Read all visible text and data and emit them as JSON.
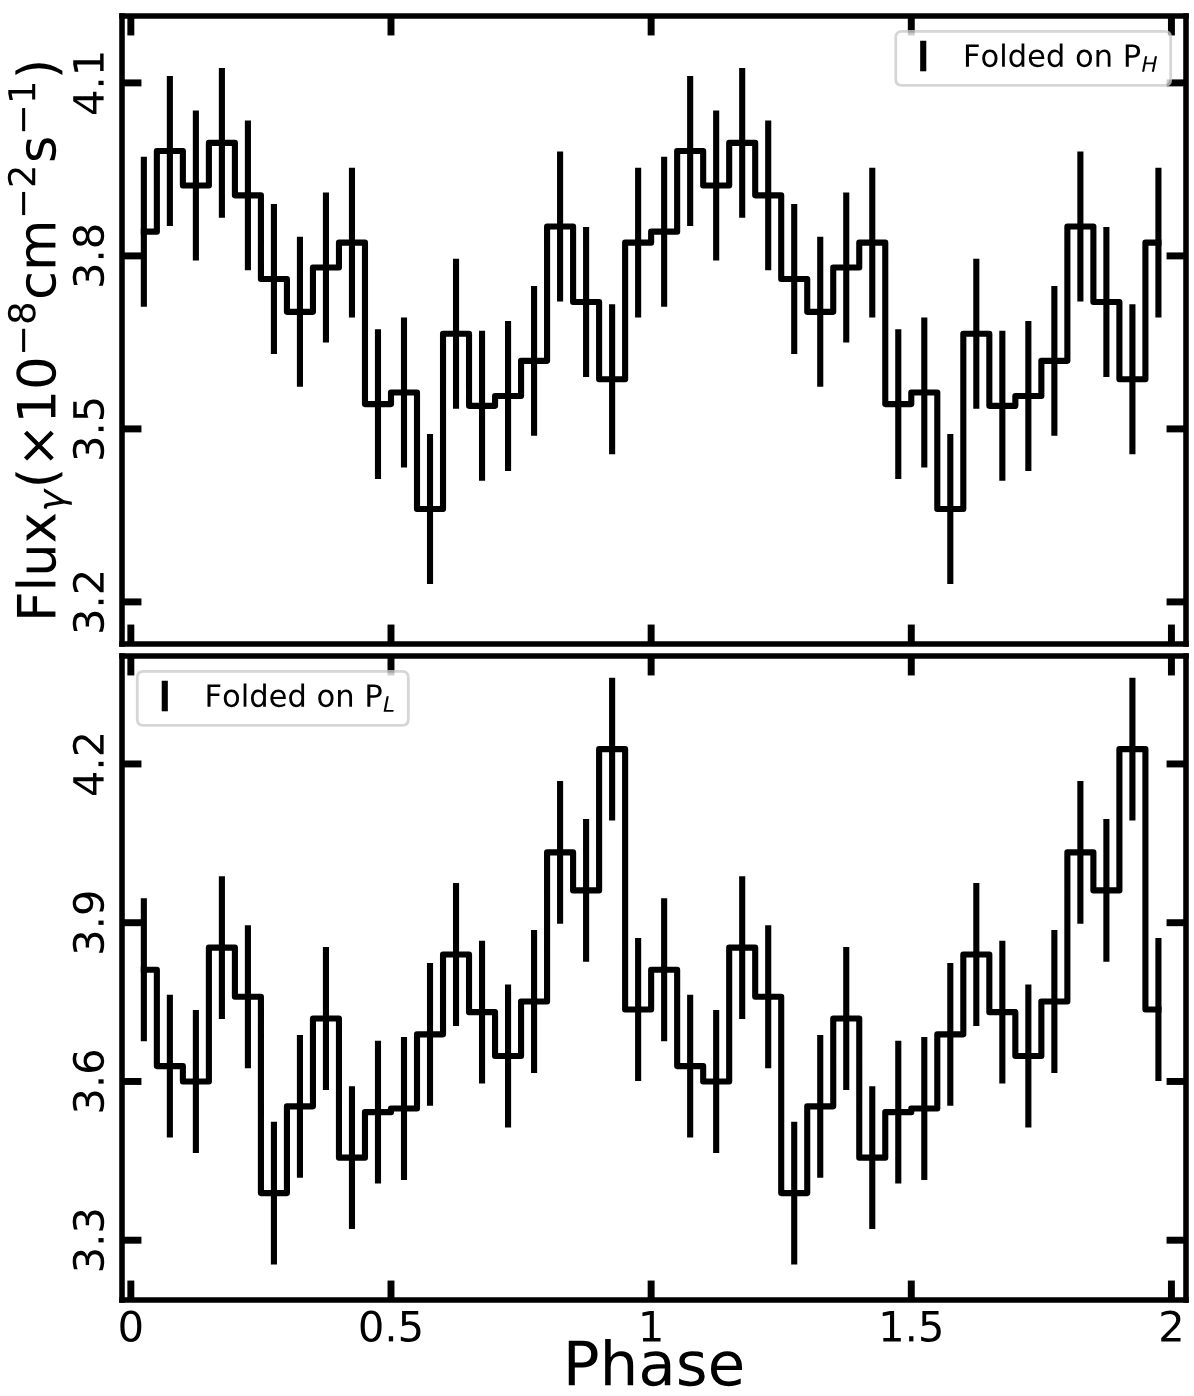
{
  "chart_data": [
    {
      "type": "step",
      "ylabel": "Flux$_{γ}$(×10$^{−8}$cm$^{−2}$s$^{−1}$)",
      "xlim": [
        -0.017,
        2.028
      ],
      "ylim": [
        3.127,
        4.216
      ],
      "xticks": [
        {
          "value": 0,
          "label": null
        },
        {
          "value": 0.5,
          "label": null
        },
        {
          "value": 1,
          "label": null
        },
        {
          "value": 1.5,
          "label": null
        },
        {
          "value": 2,
          "label": null
        }
      ],
      "yticks": [
        3.2,
        3.5,
        3.8,
        4.1
      ],
      "tick_labels": "y",
      "legend": "top right",
      "grid": false,
      "line_style": "solid",
      "x": [
        0.025,
        0.075,
        0.125,
        0.175,
        0.225,
        0.275,
        0.325,
        0.375,
        0.425,
        0.475,
        0.525,
        0.575,
        0.625,
        0.675,
        0.725,
        0.775,
        0.825,
        0.875,
        0.925,
        0.975,
        1.025,
        1.075,
        1.125,
        1.175,
        1.225,
        1.275,
        1.325,
        1.375,
        1.425,
        1.475,
        1.525,
        1.575,
        1.625,
        1.675,
        1.725,
        1.775,
        1.825,
        1.875,
        1.925,
        1.975
      ],
      "series": [
        {
          "name": "Folded on P$_{H}$",
          "color": "#000000",
          "values": [
            3.842,
            3.982,
            3.922,
            3.996,
            3.905,
            3.76,
            3.703,
            3.78,
            3.823,
            3.543,
            3.563,
            3.361,
            3.665,
            3.54,
            3.557,
            3.618,
            3.851,
            3.72,
            3.586,
            3.823,
            3.842,
            3.982,
            3.922,
            3.996,
            3.905,
            3.76,
            3.703,
            3.78,
            3.823,
            3.543,
            3.563,
            3.361,
            3.665,
            3.54,
            3.557,
            3.618,
            3.851,
            3.72,
            3.586,
            3.823
          ],
          "errors": [
            0.13,
            0.13,
            0.13,
            0.13,
            0.13,
            0.13,
            0.13,
            0.13,
            0.13,
            0.13,
            0.13,
            0.13,
            0.13,
            0.13,
            0.13,
            0.13,
            0.13,
            0.13,
            0.13,
            0.13,
            0.13,
            0.13,
            0.13,
            0.13,
            0.13,
            0.13,
            0.13,
            0.13,
            0.13,
            0.13,
            0.13,
            0.13,
            0.13,
            0.13,
            0.13,
            0.13,
            0.13,
            0.13,
            0.13,
            0.13
          ]
        }
      ]
    },
    {
      "type": "step",
      "xlabel": "Phase",
      "xlim": [
        -0.017,
        2.028
      ],
      "ylim": [
        3.187,
        4.404
      ],
      "xticks": [
        0,
        0.5,
        1,
        1.5,
        2
      ],
      "yticks": [
        3.3,
        3.6,
        3.9,
        4.2
      ],
      "legend": "top left",
      "grid": false,
      "line_style": "solid",
      "x": [
        0.025,
        0.075,
        0.125,
        0.175,
        0.225,
        0.275,
        0.325,
        0.375,
        0.425,
        0.475,
        0.525,
        0.575,
        0.625,
        0.675,
        0.725,
        0.775,
        0.825,
        0.875,
        0.925,
        0.975,
        1.025,
        1.075,
        1.125,
        1.175,
        1.225,
        1.275,
        1.325,
        1.375,
        1.425,
        1.475,
        1.525,
        1.575,
        1.625,
        1.675,
        1.725,
        1.775,
        1.825,
        1.875,
        1.925,
        1.975
      ],
      "series": [
        {
          "name": "Folded on P$_{L}$",
          "color": "#000000",
          "values": [
            3.811,
            3.629,
            3.6,
            3.853,
            3.76,
            3.389,
            3.553,
            3.719,
            3.456,
            3.542,
            3.549,
            3.689,
            3.84,
            3.731,
            3.648,
            3.751,
            4.033,
            3.961,
            4.228,
            3.736,
            3.811,
            3.629,
            3.6,
            3.853,
            3.76,
            3.389,
            3.553,
            3.719,
            3.456,
            3.542,
            3.549,
            3.689,
            3.84,
            3.731,
            3.648,
            3.751,
            4.033,
            3.961,
            4.228,
            3.736
          ],
          "errors": [
            0.135,
            0.135,
            0.135,
            0.135,
            0.135,
            0.135,
            0.135,
            0.135,
            0.135,
            0.135,
            0.135,
            0.135,
            0.135,
            0.135,
            0.135,
            0.135,
            0.135,
            0.135,
            0.135,
            0.135,
            0.135,
            0.135,
            0.135,
            0.135,
            0.135,
            0.135,
            0.135,
            0.135,
            0.135,
            0.135,
            0.135,
            0.135,
            0.135,
            0.135,
            0.135,
            0.135,
            0.135,
            0.135,
            0.135,
            0.135
          ]
        }
      ]
    }
  ]
}
